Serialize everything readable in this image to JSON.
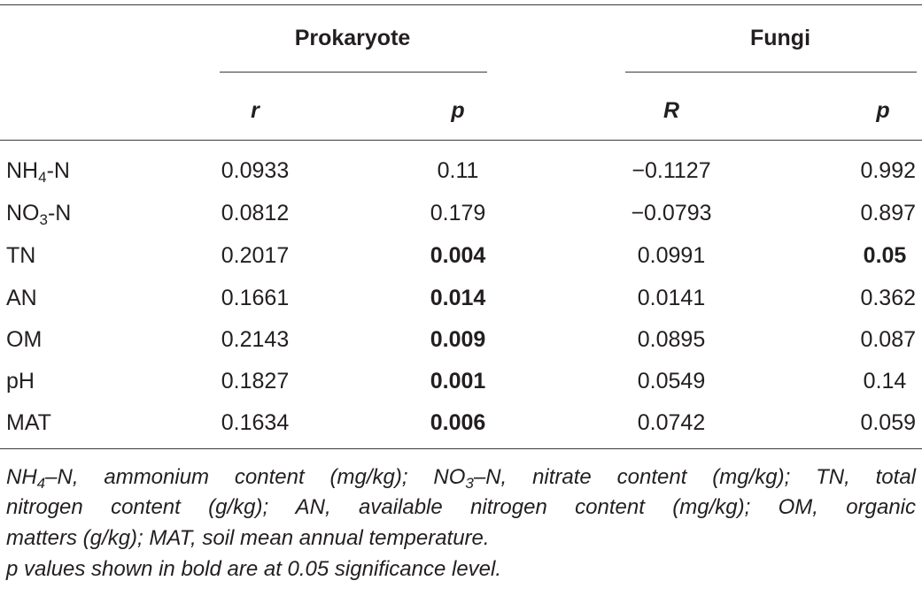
{
  "header": {
    "group_prokaryote": "Prokaryote",
    "group_fungi": "Fungi",
    "col_prok_r": "r",
    "col_prok_p": "p",
    "col_fungi_r": "R",
    "col_fungi_p": "p"
  },
  "rows": [
    {
      "label_main": "NH",
      "label_sub": "4",
      "label_tail": "-N",
      "prok_r": "0.0933",
      "prok_p": "0.11",
      "fungi_r": "−0.1127",
      "fungi_p": "0.992"
    },
    {
      "label_main": "NO",
      "label_sub": "3",
      "label_tail": "-N",
      "prok_r": "0.0812",
      "prok_p": "0.179",
      "fungi_r": "−0.0793",
      "fungi_p": "0.897"
    },
    {
      "label_main": "TN",
      "label_sub": "",
      "label_tail": "",
      "prok_r": "0.2017",
      "prok_p": "0.004",
      "fungi_r": "0.0991",
      "fungi_p": "0.05"
    },
    {
      "label_main": "AN",
      "label_sub": "",
      "label_tail": "",
      "prok_r": "0.1661",
      "prok_p": "0.014",
      "fungi_r": "0.0141",
      "fungi_p": "0.362"
    },
    {
      "label_main": "OM",
      "label_sub": "",
      "label_tail": "",
      "prok_r": "0.2143",
      "prok_p": "0.009",
      "fungi_r": "0.0895",
      "fungi_p": "0.087"
    },
    {
      "label_main": "pH",
      "label_sub": "",
      "label_tail": "",
      "prok_r": "0.1827",
      "prok_p": "0.001",
      "fungi_r": "0.0549",
      "fungi_p": "0.14"
    },
    {
      "label_main": "MAT",
      "label_sub": "",
      "label_tail": "",
      "prok_r": "0.1634",
      "prok_p": "0.006",
      "fungi_r": "0.0742",
      "fungi_p": "0.059"
    }
  ],
  "footnote": {
    "line1_a": "NH",
    "line1_sub_a": "4",
    "line1_b": "–N, ammonium content (mg/kg); NO",
    "line1_sub_b": "3",
    "line1_c": "–N, nitrate content (mg/kg); TN, total",
    "line2": "nitrogen content (g/kg); AN, available nitrogen content (mg/kg); OM, organic",
    "line3": "matters (g/kg); MAT, soil mean annual temperature.",
    "line4": "p values shown in bold are at 0.05 significance level."
  }
}
